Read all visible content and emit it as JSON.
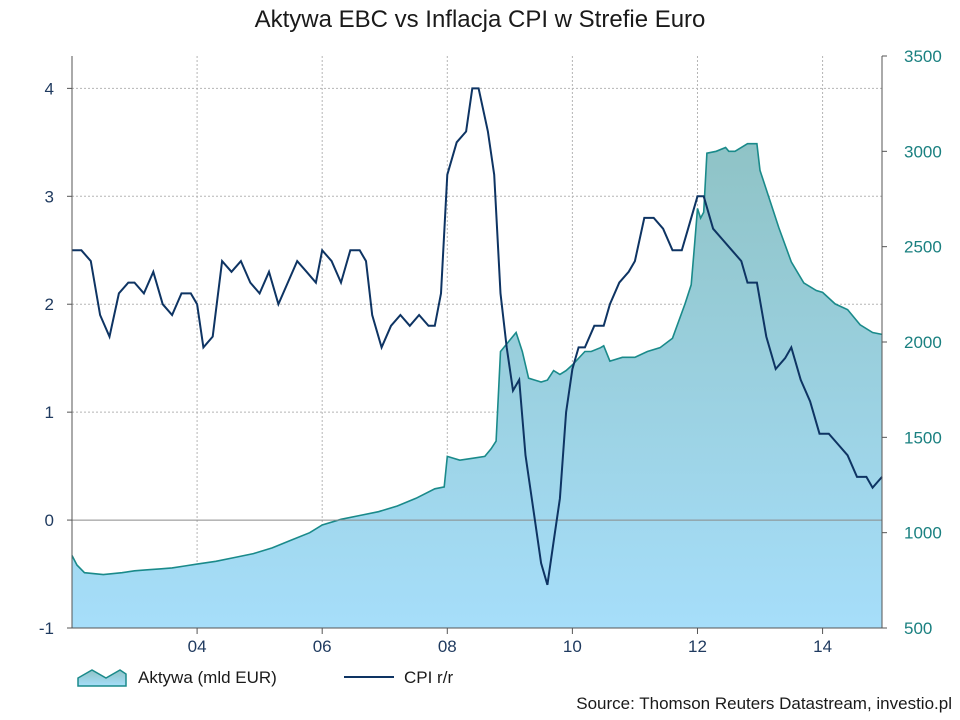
{
  "chart_data": {
    "type": "area",
    "title": "Aktywa EBC vs Inflacja CPI w Strefie Euro",
    "x_range": [
      2002.0,
      2014.95
    ],
    "x_ticks": [
      {
        "value": 2004,
        "label": "04"
      },
      {
        "value": 2006,
        "label": "06"
      },
      {
        "value": 2008,
        "label": "08"
      },
      {
        "value": 2010,
        "label": "10"
      },
      {
        "value": 2012,
        "label": "12"
      },
      {
        "value": 2014,
        "label": "14"
      }
    ],
    "y_left": {
      "range": [
        -1,
        4.3
      ],
      "ticks": [
        -1,
        0,
        1,
        2,
        3,
        4
      ]
    },
    "y_right": {
      "range": [
        500,
        3500
      ],
      "ticks": [
        500,
        1000,
        1500,
        2000,
        2500,
        3000,
        3500
      ]
    },
    "zero_line": 0,
    "grid": true,
    "series": [
      {
        "name": "Aktywa (mld EUR)",
        "axis": "right",
        "kind": "area",
        "color": "#1a8a8a",
        "fill_top": "#8fc3c6",
        "fill_bottom": "#a6defa",
        "x": [
          2002.0,
          2002.08,
          2002.2,
          2002.5,
          2002.8,
          2003.0,
          2003.2,
          2003.4,
          2003.6,
          2003.8,
          2004.0,
          2004.3,
          2004.6,
          2004.9,
          2005.2,
          2005.5,
          2005.8,
          2006.0,
          2006.3,
          2006.6,
          2006.9,
          2007.2,
          2007.5,
          2007.8,
          2007.95,
          2008.0,
          2008.2,
          2008.4,
          2008.6,
          2008.7,
          2008.78,
          2008.85,
          2009.0,
          2009.1,
          2009.2,
          2009.3,
          2009.4,
          2009.5,
          2009.6,
          2009.7,
          2009.8,
          2009.9,
          2010.0,
          2010.2,
          2010.3,
          2010.45,
          2010.5,
          2010.6,
          2010.8,
          2011.0,
          2011.2,
          2011.4,
          2011.6,
          2011.8,
          2011.9,
          2011.95,
          2012.0,
          2012.05,
          2012.1,
          2012.15,
          2012.3,
          2012.45,
          2012.5,
          2012.6,
          2012.8,
          2012.95,
          2013.0,
          2013.1,
          2013.3,
          2013.5,
          2013.7,
          2013.9,
          2014.0,
          2014.2,
          2014.4,
          2014.6,
          2014.8,
          2014.95
        ],
        "values": [
          880,
          830,
          790,
          780,
          790,
          800,
          805,
          810,
          815,
          825,
          835,
          850,
          870,
          890,
          920,
          960,
          1000,
          1040,
          1070,
          1090,
          1110,
          1140,
          1180,
          1230,
          1240,
          1400,
          1380,
          1390,
          1400,
          1440,
          1480,
          1950,
          2010,
          2050,
          1950,
          1810,
          1800,
          1790,
          1800,
          1850,
          1830,
          1850,
          1880,
          1950,
          1950,
          1970,
          1980,
          1900,
          1920,
          1920,
          1950,
          1970,
          2020,
          2200,
          2300,
          2500,
          2700,
          2650,
          2680,
          2990,
          3000,
          3020,
          3000,
          3000,
          3040,
          3040,
          2900,
          2800,
          2600,
          2420,
          2310,
          2270,
          2260,
          2200,
          2170,
          2090,
          2050,
          2040
        ]
      },
      {
        "name": "CPI r/r",
        "axis": "left",
        "kind": "line",
        "color": "#0e3463",
        "x": [
          2002.0,
          2002.15,
          2002.3,
          2002.45,
          2002.6,
          2002.75,
          2002.9,
          2003.0,
          2003.15,
          2003.3,
          2003.45,
          2003.6,
          2003.75,
          2003.9,
          2004.0,
          2004.1,
          2004.25,
          2004.4,
          2004.55,
          2004.7,
          2004.85,
          2005.0,
          2005.15,
          2005.3,
          2005.45,
          2005.6,
          2005.75,
          2005.9,
          2006.0,
          2006.15,
          2006.3,
          2006.45,
          2006.6,
          2006.7,
          2006.8,
          2006.95,
          2007.1,
          2007.25,
          2007.4,
          2007.55,
          2007.7,
          2007.8,
          2007.9,
          2008.0,
          2008.15,
          2008.3,
          2008.4,
          2008.5,
          2008.65,
          2008.75,
          2008.85,
          2008.95,
          2009.05,
          2009.15,
          2009.25,
          2009.4,
          2009.5,
          2009.6,
          2009.7,
          2009.8,
          2009.9,
          2010.0,
          2010.1,
          2010.2,
          2010.35,
          2010.5,
          2010.6,
          2010.75,
          2010.9,
          2011.0,
          2011.15,
          2011.3,
          2011.45,
          2011.6,
          2011.75,
          2011.85,
          2012.0,
          2012.1,
          2012.25,
          2012.4,
          2012.55,
          2012.7,
          2012.8,
          2012.95,
          2013.1,
          2013.25,
          2013.4,
          2013.5,
          2013.65,
          2013.8,
          2013.95,
          2014.1,
          2014.25,
          2014.4,
          2014.55,
          2014.7,
          2014.8,
          2014.95
        ],
        "values": [
          2.5,
          2.5,
          2.4,
          1.9,
          1.7,
          2.1,
          2.2,
          2.2,
          2.1,
          2.3,
          2.0,
          1.9,
          2.1,
          2.1,
          2.0,
          1.6,
          1.7,
          2.4,
          2.3,
          2.4,
          2.2,
          2.1,
          2.3,
          2.0,
          2.2,
          2.4,
          2.3,
          2.2,
          2.5,
          2.4,
          2.2,
          2.5,
          2.5,
          2.4,
          1.9,
          1.6,
          1.8,
          1.9,
          1.8,
          1.9,
          1.8,
          1.8,
          2.1,
          3.2,
          3.5,
          3.6,
          4.0,
          4.0,
          3.6,
          3.2,
          2.1,
          1.6,
          1.2,
          1.3,
          0.6,
          0.0,
          -0.4,
          -0.6,
          -0.2,
          0.2,
          1.0,
          1.4,
          1.6,
          1.6,
          1.8,
          1.8,
          2.0,
          2.2,
          2.3,
          2.4,
          2.8,
          2.8,
          2.7,
          2.5,
          2.5,
          2.7,
          3.0,
          3.0,
          2.7,
          2.6,
          2.5,
          2.4,
          2.2,
          2.2,
          1.7,
          1.4,
          1.5,
          1.6,
          1.3,
          1.1,
          0.8,
          0.8,
          0.7,
          0.6,
          0.4,
          0.4,
          0.3,
          0.4
        ]
      }
    ],
    "legend": [
      {
        "label": "Aktywa (mld EUR)"
      },
      {
        "label": "CPI r/r"
      }
    ],
    "legend_placement": "bottom-left",
    "source": "Source: Thomson Reuters Datastream, investio.pl"
  }
}
